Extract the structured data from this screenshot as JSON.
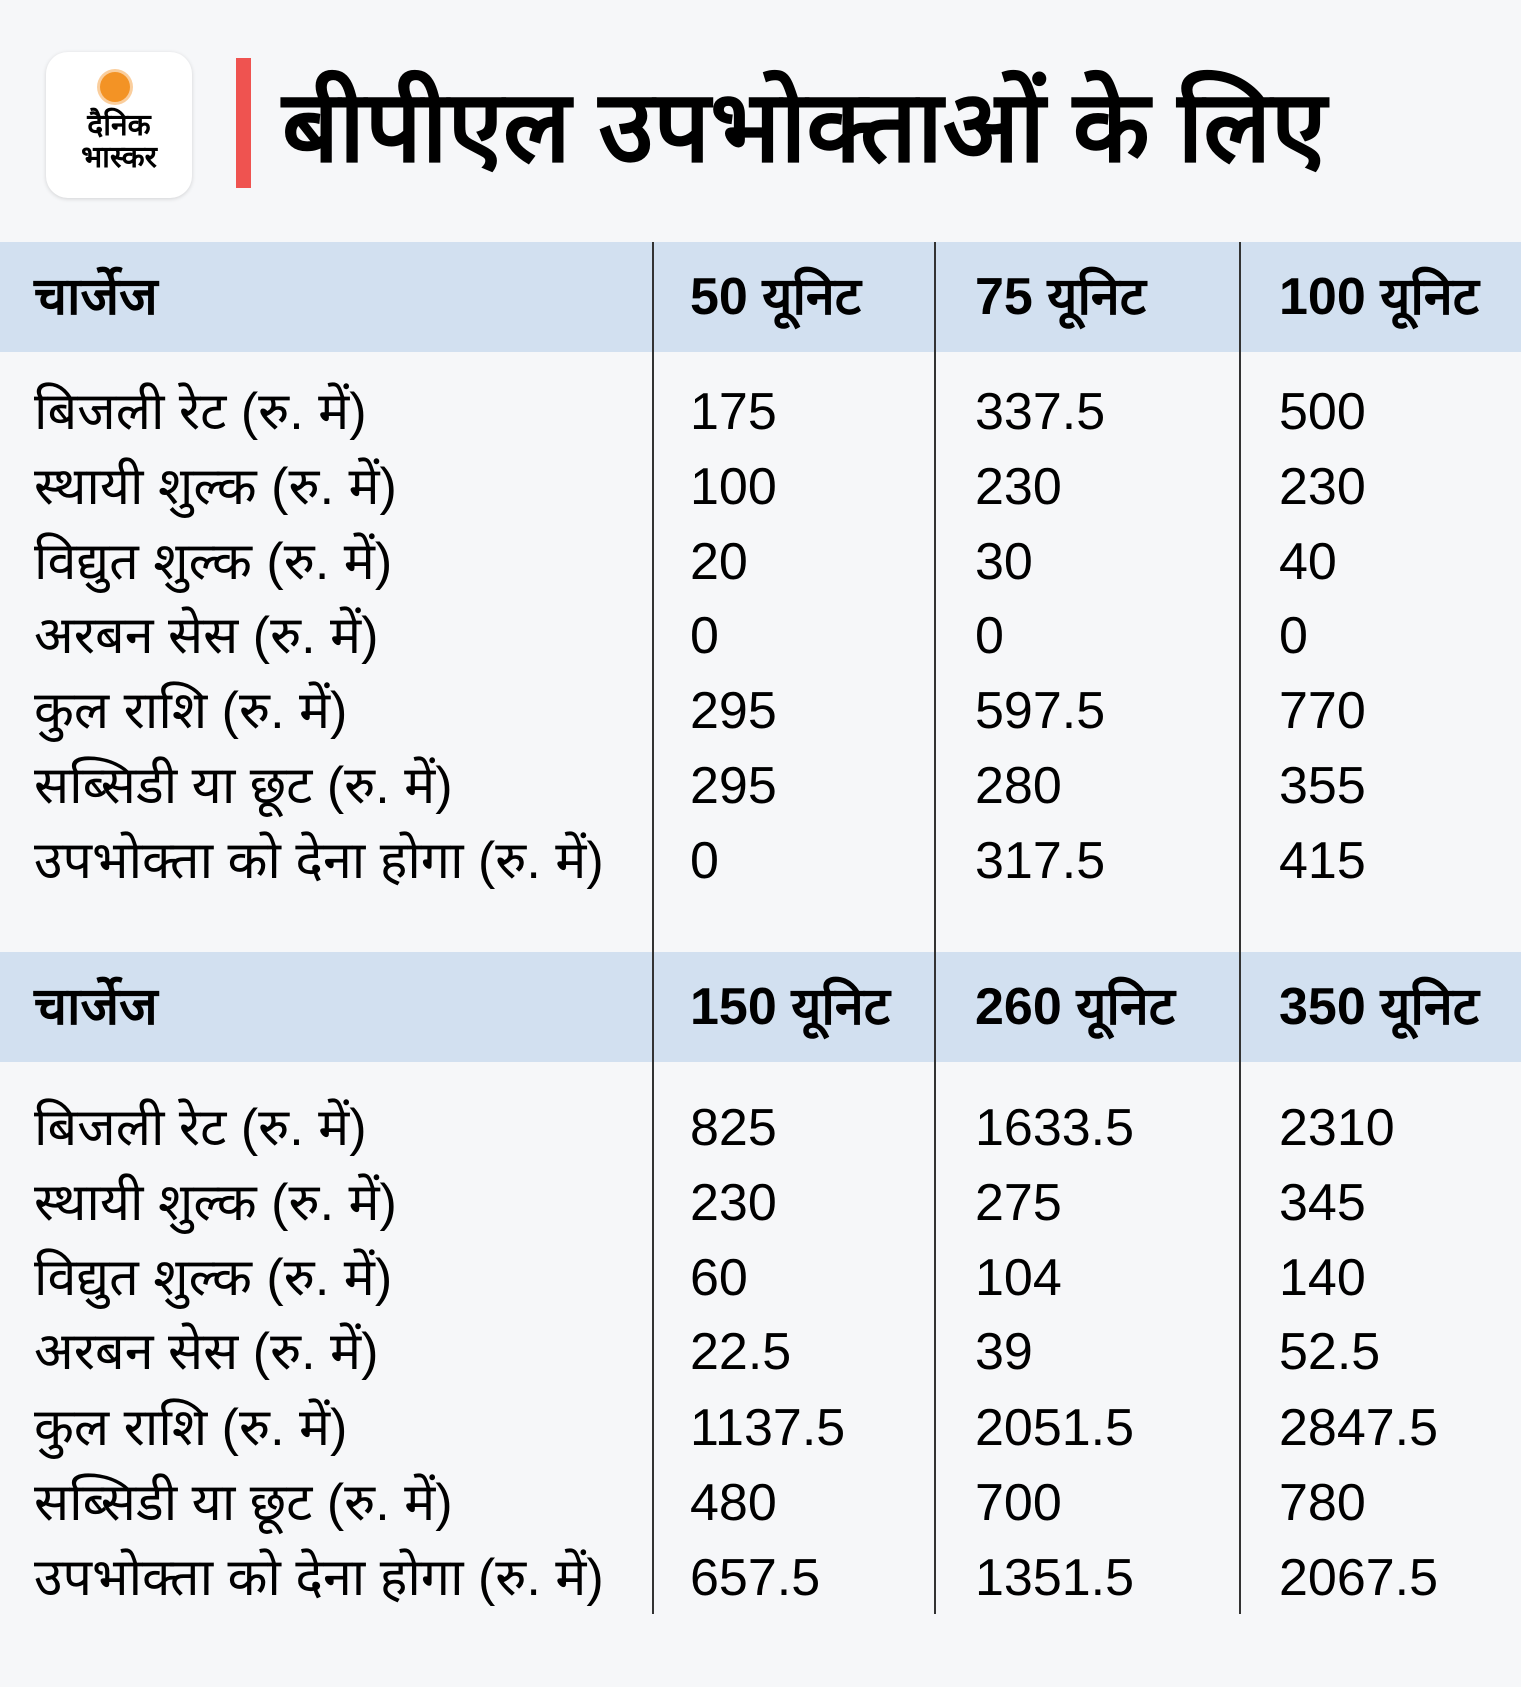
{
  "logo": {
    "line1": "दैनिक",
    "line2": "भास्कर"
  },
  "title": "बीपीएल उपभोक्ताओं के लिए",
  "tables": [
    {
      "header": [
        "चार्जेज",
        "50 यूनिट",
        "75 यूनिट",
        "100 यूनिट"
      ],
      "rows": [
        [
          "बिजली रेट (रु. में)",
          "175",
          "337.5",
          "500"
        ],
        [
          "स्थायी शुल्क (रु. में)",
          "100",
          "230",
          "230"
        ],
        [
          "विद्युत शुल्क (रु. में)",
          "20",
          "30",
          "40"
        ],
        [
          "अरबन सेस (रु. में)",
          "0",
          "0",
          "0"
        ],
        [
          "कुल राशि (रु. में)",
          "295",
          "597.5",
          "770"
        ],
        [
          "सब्सिडी या छूट (रु. में)",
          "295",
          "280",
          "355"
        ],
        [
          "उपभोक्ता को देना होगा (रु. में)",
          "0",
          "317.5",
          "415"
        ]
      ]
    },
    {
      "header": [
        "चार्जेज",
        "150 यूनिट",
        "260 यूनिट",
        "350 यूनिट"
      ],
      "rows": [
        [
          "बिजली रेट (रु. में)",
          "825",
          "1633.5",
          "2310"
        ],
        [
          "स्थायी शुल्क (रु. में)",
          "230",
          "275",
          "345"
        ],
        [
          "विद्युत शुल्क (रु. में)",
          "60",
          "104",
          "140"
        ],
        [
          "अरबन सेस (रु. में)",
          "22.5",
          "39",
          "52.5"
        ],
        [
          "कुल राशि (रु. में)",
          "1137.5",
          "2051.5",
          "2847.5"
        ],
        [
          "सब्सिडी या छूट (रु. में)",
          "480",
          "700",
          "780"
        ],
        [
          "उपभोक्ता को देना होगा (रु. में)",
          "657.5",
          "1351.5",
          "2067.5"
        ]
      ]
    }
  ]
}
